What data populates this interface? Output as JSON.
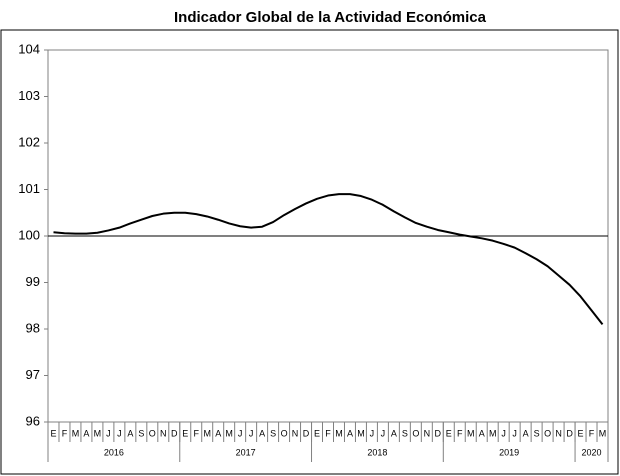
{
  "chart_data": {
    "type": "line",
    "title": "Indicador Global de la Actividad Económica",
    "categories": [
      "E",
      "F",
      "M",
      "A",
      "M",
      "J",
      "J",
      "A",
      "S",
      "O",
      "N",
      "D",
      "E",
      "F",
      "M",
      "A",
      "M",
      "J",
      "J",
      "A",
      "S",
      "O",
      "N",
      "D",
      "E",
      "F",
      "M",
      "A",
      "M",
      "J",
      "J",
      "A",
      "S",
      "O",
      "N",
      "D",
      "E",
      "F",
      "M",
      "A",
      "M",
      "J",
      "J",
      "A",
      "S",
      "O",
      "N",
      "D",
      "E",
      "F",
      "M"
    ],
    "years": [
      "2016",
      "2017",
      "2018",
      "2019",
      "2020"
    ],
    "series": [
      {
        "color": "#000000",
        "values": [
          100.08,
          100.06,
          100.05,
          100.05,
          100.07,
          100.12,
          100.18,
          100.27,
          100.35,
          100.43,
          100.48,
          100.5,
          100.5,
          100.47,
          100.42,
          100.35,
          100.27,
          100.21,
          100.18,
          100.2,
          100.3,
          100.45,
          100.58,
          100.7,
          100.8,
          100.87,
          100.9,
          100.9,
          100.86,
          100.78,
          100.67,
          100.53,
          100.4,
          100.28,
          100.2,
          100.13,
          100.08,
          100.03,
          99.99,
          99.95,
          99.9,
          99.83,
          99.75,
          99.63,
          99.5,
          99.35,
          99.15,
          98.95,
          98.7,
          98.4,
          98.1
        ]
      }
    ],
    "reference_line": 100,
    "ylim": [
      96,
      104
    ],
    "yticks": [
      96,
      97,
      98,
      99,
      100,
      101,
      102,
      103,
      104
    ]
  }
}
